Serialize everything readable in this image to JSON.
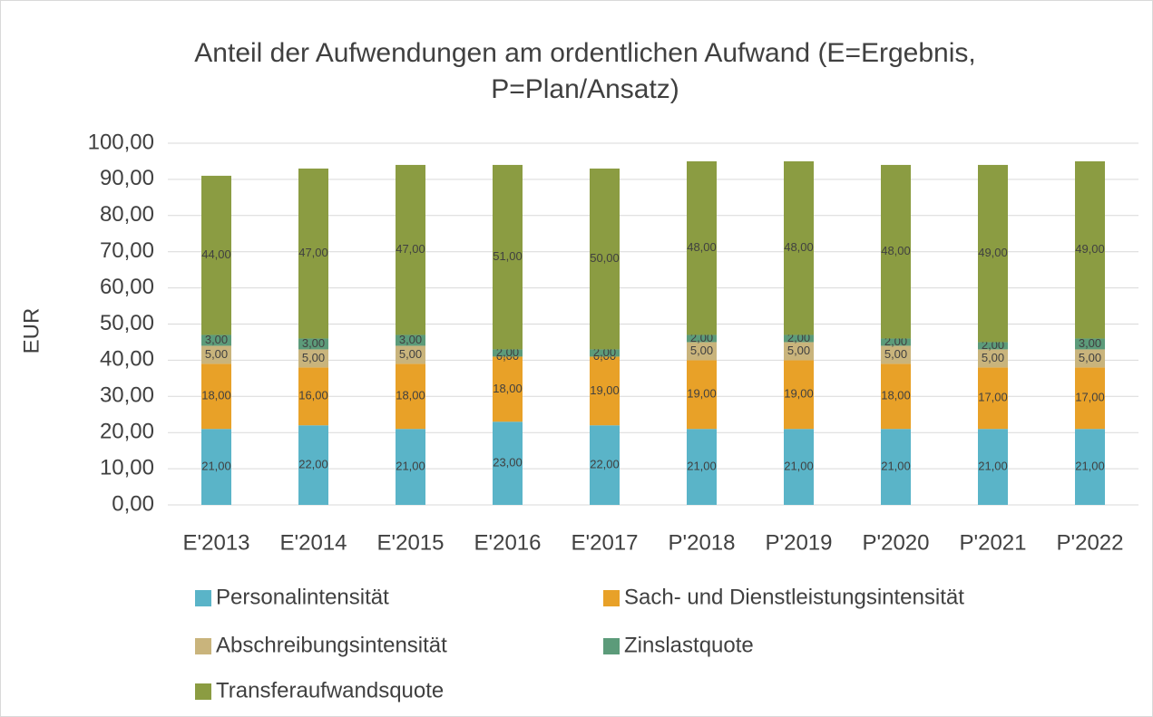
{
  "chart_data": {
    "type": "stacked_bar",
    "title": "Anteil der Aufwendungen am ordentlichen Aufwand (E=Ergebnis, P=Plan/Ansatz)",
    "y_label": "EUR",
    "categories": [
      "E'2013",
      "E'2014",
      "E'2015",
      "E'2016",
      "E'2017",
      "P'2018",
      "P'2019",
      "P'2020",
      "P'2021",
      "P'2022"
    ],
    "series": [
      {
        "name": "Personalintensität",
        "color": "#5ab4c8",
        "values": [
          21,
          22,
          21,
          23,
          22,
          21,
          21,
          21,
          21,
          21
        ],
        "value_labels": [
          "21,00",
          "22,00",
          "21,00",
          "23,00",
          "22,00",
          "21,00",
          "21,00",
          "21,00",
          "21,00",
          "21,00"
        ]
      },
      {
        "name": "Sach- und Dienstleistungsintensität",
        "color": "#e8a128",
        "values": [
          18,
          16,
          18,
          18,
          19,
          19,
          19,
          18,
          17,
          17
        ],
        "value_labels": [
          "18,00",
          "16,00",
          "18,00",
          "18,00",
          "19,00",
          "19,00",
          "19,00",
          "18,00",
          "17,00",
          "17,00"
        ]
      },
      {
        "name": "Abschreibungsintensität",
        "color": "#c9b47c",
        "values": [
          5,
          5,
          5,
          0,
          0,
          5,
          5,
          5,
          5,
          5
        ],
        "value_labels": [
          "5,00",
          "5,00",
          "5,00",
          "0,00",
          "0,00",
          "5,00",
          "5,00",
          "5,00",
          "5,00",
          "5,00"
        ]
      },
      {
        "name": "Zinslastquote",
        "color": "#5c9b7a",
        "values": [
          3,
          3,
          3,
          2,
          2,
          2,
          2,
          2,
          2,
          3
        ],
        "value_labels": [
          "3,00",
          "3,00",
          "3,00",
          "2,00",
          "2,00",
          "2,00",
          "2,00",
          "2,00",
          "2,00",
          "3,00"
        ]
      },
      {
        "name": "Transferaufwandsquote",
        "color": "#8b9c42",
        "values": [
          44,
          47,
          47,
          51,
          50,
          48,
          48,
          48,
          49,
          49
        ],
        "value_labels": [
          "44,00",
          "47,00",
          "47,00",
          "51,00",
          "50,00",
          "48,00",
          "48,00",
          "48,00",
          "49,00",
          "49,00"
        ]
      }
    ],
    "ylim": [
      0,
      100
    ],
    "yticks": [
      {
        "value": 0,
        "label": "0,00"
      },
      {
        "value": 10,
        "label": "10,00"
      },
      {
        "value": 20,
        "label": "20,00"
      },
      {
        "value": 30,
        "label": "30,00"
      },
      {
        "value": 40,
        "label": "40,00"
      },
      {
        "value": 50,
        "label": "50,00"
      },
      {
        "value": 60,
        "label": "60,00"
      },
      {
        "value": 70,
        "label": "70,00"
      },
      {
        "value": 80,
        "label": "80,00"
      },
      {
        "value": 90,
        "label": "90,00"
      },
      {
        "value": 100,
        "label": "100,00"
      }
    ],
    "grid": true
  }
}
